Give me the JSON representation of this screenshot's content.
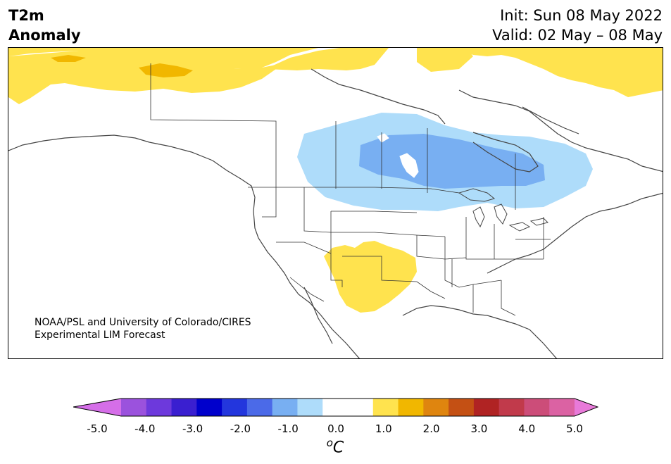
{
  "header": {
    "title_line1": "T2m",
    "title_line2": "Anomaly",
    "init_text": "Init: Sun 08 May 2022",
    "valid_text": "Valid: 02 May – 08 May"
  },
  "credit": {
    "line1": "NOAA/PSL and University of Colorado/CIRES",
    "line2": "Experimental LIM Forecast"
  },
  "colorbar": {
    "ticks": [
      "-5.0",
      "-4.0",
      "-3.0",
      "-2.0",
      "-1.0",
      "0.0",
      "1.0",
      "2.0",
      "3.0",
      "4.0",
      "5.0"
    ],
    "unit_sup": "o",
    "unit_main": "C",
    "colors": [
      "#d56ee8",
      "#9b52dd",
      "#6d39dc",
      "#3a1fd0",
      "#0000cc",
      "#2336dd",
      "#4b6ae8",
      "#78aff2",
      "#aedcfa",
      "#ffffff",
      "#ffffff",
      "#ffe34e",
      "#f1b700",
      "#df850f",
      "#c45014",
      "#b02323",
      "#c13a4b",
      "#cc4d79",
      "#db62a3",
      "#e87ad9"
    ]
  },
  "map": {
    "anomaly_colors": {
      "warm1": "#ffe34e",
      "warm2": "#f1b700",
      "cool1": "#aedcfa",
      "cool2": "#78aff2"
    }
  }
}
